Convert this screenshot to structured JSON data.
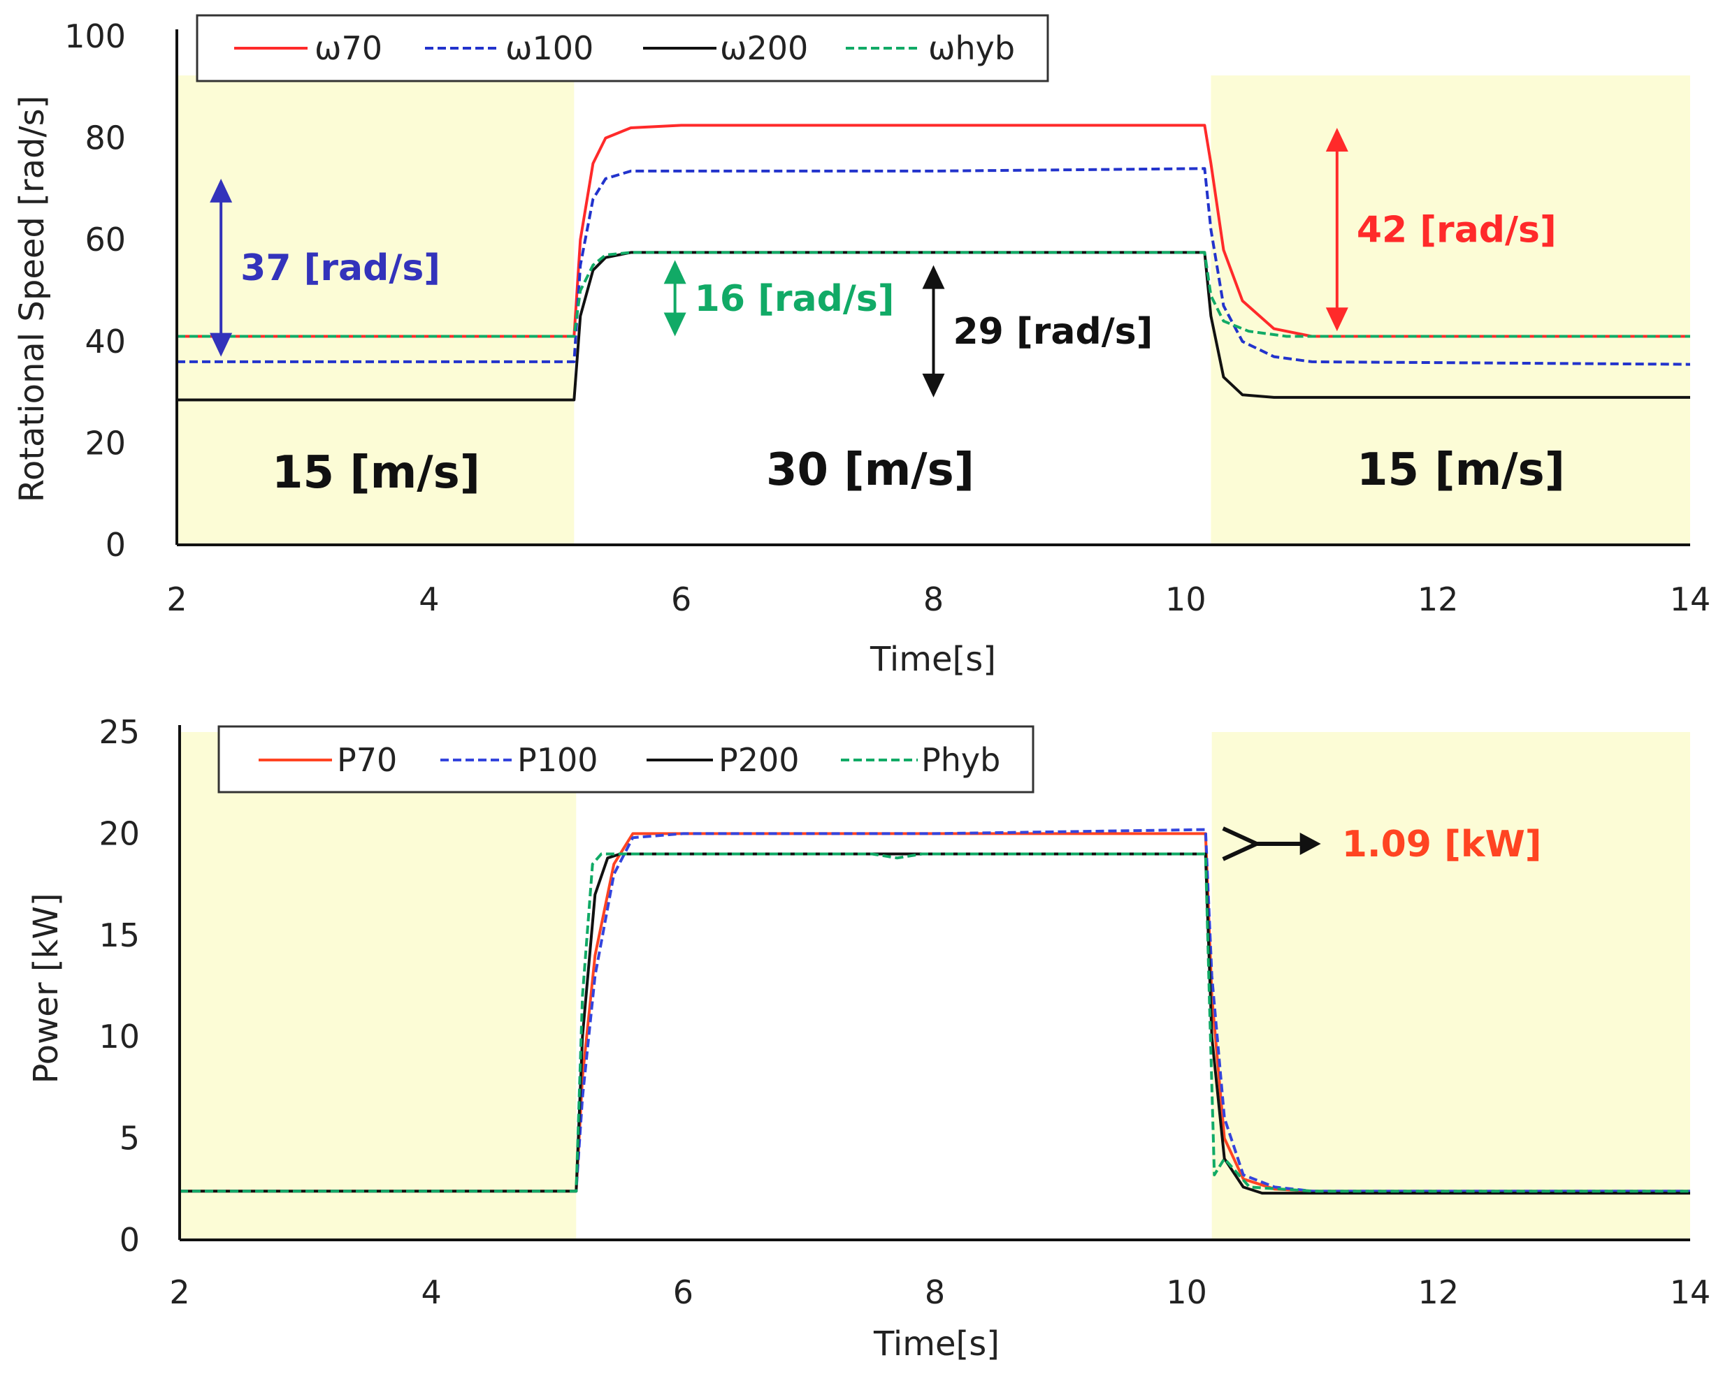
{
  "chart_data": [
    {
      "type": "line",
      "id": "speed",
      "xlabel": "Time[s]",
      "ylabel": "Rotational Speed [rad/s]",
      "xlim": [
        2,
        14
      ],
      "ylim": [
        0,
        100
      ],
      "xticks": [
        2,
        4,
        6,
        8,
        10,
        12,
        14
      ],
      "yticks": [
        0,
        20,
        40,
        60,
        80,
        100
      ],
      "shaded_regions": [
        {
          "x_range": [
            2,
            5.15
          ],
          "label": "15 [m/s]",
          "color": "#fcfcd6"
        },
        {
          "x_range": [
            5.15,
            10.2
          ],
          "label": "30 [m/s]",
          "color": "#ffffff"
        },
        {
          "x_range": [
            10.2,
            14
          ],
          "label": "15 [m/s]",
          "color": "#fcfcd6"
        }
      ],
      "legend": {
        "position": "top",
        "entries": [
          "ω70",
          "ω100",
          "ω200",
          "ωhyb"
        ]
      },
      "series": [
        {
          "name": "ω70",
          "color": "#ff2a2a",
          "dash": "solid",
          "x": [
            2,
            5.15,
            5.2,
            5.3,
            5.4,
            5.6,
            6,
            8,
            10.15,
            10.2,
            10.3,
            10.45,
            10.7,
            11,
            14
          ],
          "y": [
            41,
            41,
            60,
            75,
            80,
            82,
            82.5,
            82.5,
            82.5,
            75,
            58,
            48,
            42.5,
            41,
            41
          ]
        },
        {
          "name": "ω100",
          "color": "#2233cc",
          "dash": "dashed",
          "x": [
            2,
            5.15,
            5.2,
            5.3,
            5.4,
            5.6,
            6,
            8,
            10.15,
            10.2,
            10.3,
            10.45,
            10.7,
            11,
            14
          ],
          "y": [
            36,
            36,
            55,
            68,
            72,
            73.5,
            73.5,
            73.5,
            74,
            62,
            47,
            40,
            37,
            36,
            35.5
          ]
        },
        {
          "name": "ω200",
          "color": "#111111",
          "dash": "solid",
          "x": [
            2,
            5.15,
            5.2,
            5.3,
            5.4,
            5.6,
            6,
            8,
            10.15,
            10.2,
            10.3,
            10.45,
            10.7,
            14
          ],
          "y": [
            28.5,
            28.5,
            45,
            54,
            56.5,
            57.5,
            57.5,
            57.5,
            57.5,
            45,
            33,
            29.5,
            29,
            29
          ]
        },
        {
          "name": "ωhyb",
          "color": "#11aa66",
          "dash": "dashed",
          "x": [
            2,
            5.15,
            5.2,
            5.3,
            5.4,
            5.6,
            6,
            8,
            10.15,
            10.2,
            10.3,
            10.5,
            10.8,
            11,
            14
          ],
          "y": [
            41,
            41,
            50,
            55,
            57,
            57.5,
            57.5,
            57.5,
            57.5,
            49,
            44,
            42,
            41,
            41,
            41
          ]
        }
      ],
      "annotations": [
        {
          "text": "37 [rad/s]",
          "color": "#3333bb",
          "x": 2.35,
          "y_range": [
            37,
            72
          ]
        },
        {
          "text": "16 [rad/s]",
          "color": "#11aa66",
          "x": 5.95,
          "y_range": [
            41,
            56
          ]
        },
        {
          "text": "29 [rad/s]",
          "color": "#111111",
          "x": 8.0,
          "y_range": [
            29,
            55
          ]
        },
        {
          "text": "42 [rad/s]",
          "color": "#ff2a2a",
          "x": 11.2,
          "y_range": [
            42,
            82
          ]
        }
      ]
    },
    {
      "type": "line",
      "id": "power",
      "xlabel": "Time[s]",
      "ylabel": "Power [kW]",
      "xlim": [
        2,
        14
      ],
      "ylim": [
        0,
        25
      ],
      "xticks": [
        2,
        4,
        6,
        8,
        10,
        12,
        14
      ],
      "yticks": [
        0,
        5,
        10,
        15,
        20,
        25
      ],
      "shaded_regions": [
        {
          "x_range": [
            2,
            5.15
          ],
          "color": "#fcfcd6"
        },
        {
          "x_range": [
            10.2,
            14
          ],
          "color": "#fcfcd6"
        }
      ],
      "legend": {
        "position": "top",
        "entries": [
          "P70",
          "P100",
          "P200",
          "Phyb"
        ]
      },
      "series": [
        {
          "name": "P70",
          "color": "#ff4422",
          "dash": "solid",
          "x": [
            2,
            5.15,
            5.2,
            5.3,
            5.45,
            5.6,
            6,
            8,
            10.15,
            10.2,
            10.3,
            10.45,
            10.7,
            11,
            14
          ],
          "y": [
            2.4,
            2.4,
            8,
            14,
            18.5,
            20,
            20,
            20,
            20,
            12,
            5,
            3,
            2.5,
            2.4,
            2.4
          ]
        },
        {
          "name": "P100",
          "color": "#3344dd",
          "dash": "dashed",
          "x": [
            2,
            5.15,
            5.2,
            5.3,
            5.45,
            5.6,
            6,
            8,
            10.15,
            10.2,
            10.3,
            10.45,
            10.7,
            11,
            14
          ],
          "y": [
            2.4,
            2.4,
            7,
            13,
            18,
            19.8,
            20,
            20,
            20.2,
            13,
            6,
            3.2,
            2.6,
            2.4,
            2.4
          ]
        },
        {
          "name": "P200",
          "color": "#111111",
          "dash": "solid",
          "x": [
            2,
            5.15,
            5.2,
            5.3,
            5.4,
            5.5,
            6,
            8,
            10.15,
            10.2,
            10.3,
            10.45,
            10.6,
            14
          ],
          "y": [
            2.4,
            2.4,
            10,
            17,
            18.8,
            19,
            19,
            19,
            19,
            10,
            4,
            2.6,
            2.3,
            2.3
          ]
        },
        {
          "name": "Phyb",
          "color": "#11aa66",
          "dash": "dashed",
          "x": [
            2,
            5.15,
            5.2,
            5.28,
            5.35,
            5.5,
            6,
            7.5,
            7.7,
            7.9,
            10.15,
            10.18,
            10.22,
            10.3,
            10.5,
            11,
            14
          ],
          "y": [
            2.4,
            2.4,
            12,
            18.5,
            19,
            19,
            19,
            19,
            18.8,
            19,
            19,
            12,
            3.2,
            4,
            2.6,
            2.4,
            2.4
          ]
        }
      ],
      "annotations": [
        {
          "text": "1.09 [kW]",
          "color": "#ff4422",
          "x": 10.4,
          "y": 19.5
        }
      ]
    }
  ]
}
